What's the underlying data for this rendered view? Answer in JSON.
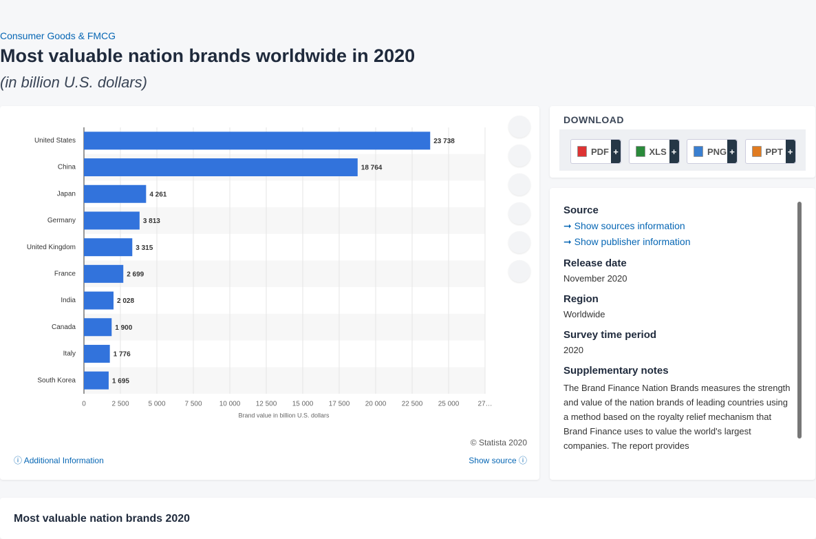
{
  "header": {
    "breadcrumb": "Consumer Goods & FMCG",
    "title": "Most valuable nation brands worldwide in 2020",
    "subtitle": "(in billion U.S. dollars)"
  },
  "chart_data": {
    "type": "bar",
    "orientation": "horizontal",
    "categories": [
      "United States",
      "China",
      "Japan",
      "Germany",
      "United Kingdom",
      "France",
      "India",
      "Canada",
      "Italy",
      "South Korea"
    ],
    "values": [
      23738,
      18764,
      4261,
      3813,
      3315,
      2699,
      2028,
      1900,
      1776,
      1695
    ],
    "value_labels": [
      "23 738",
      "18 764",
      "4 261",
      "3 813",
      "3 315",
      "2 699",
      "2 028",
      "1 900",
      "1 776",
      "1 695"
    ],
    "color": "#3273dc",
    "xlabel": "Brand value in billion U.S. dollars",
    "xlim": [
      0,
      27500
    ],
    "xticks": [
      0,
      {
        "value": 2500,
        "label": "2 500"
      },
      {
        "value": 5000,
        "label": "5 000"
      },
      {
        "value": 7500,
        "label": "7 500"
      },
      {
        "value": 10000,
        "label": "10 000"
      },
      {
        "value": 12500,
        "label": "12 500"
      },
      {
        "value": 15000,
        "label": "15 000"
      },
      {
        "value": 17500,
        "label": "17 500"
      },
      {
        "value": 20000,
        "label": "20 000"
      },
      {
        "value": 22500,
        "label": "22 500"
      },
      {
        "value": 25000,
        "label": "25 000"
      },
      {
        "value": 27500,
        "label": "27…"
      }
    ],
    "grid": true
  },
  "chart_footer": {
    "copyright": "© Statista 2020",
    "additional": "Additional Information",
    "show_source": "Show source"
  },
  "download": {
    "label": "DOWNLOAD",
    "formats": [
      "PDF",
      "XLS",
      "PNG",
      "PPT"
    ],
    "plus": "+"
  },
  "details": {
    "source_label": "Source",
    "show_sources": "Show sources information",
    "show_publisher": "Show publisher information",
    "items": [
      {
        "label": "Release date",
        "value": "November 2020"
      },
      {
        "label": "Region",
        "value": "Worldwide"
      },
      {
        "label": "Survey time period",
        "value": "2020"
      }
    ],
    "notes_label": "Supplementary notes",
    "notes": "The Brand Finance Nation Brands measures the strength and value of the nation brands of leading countries using a method based on the royalty relief mechanism that Brand Finance uses to value the world's largest companies. The report provides"
  },
  "bottom": {
    "title": "Most valuable nation brands 2020"
  }
}
